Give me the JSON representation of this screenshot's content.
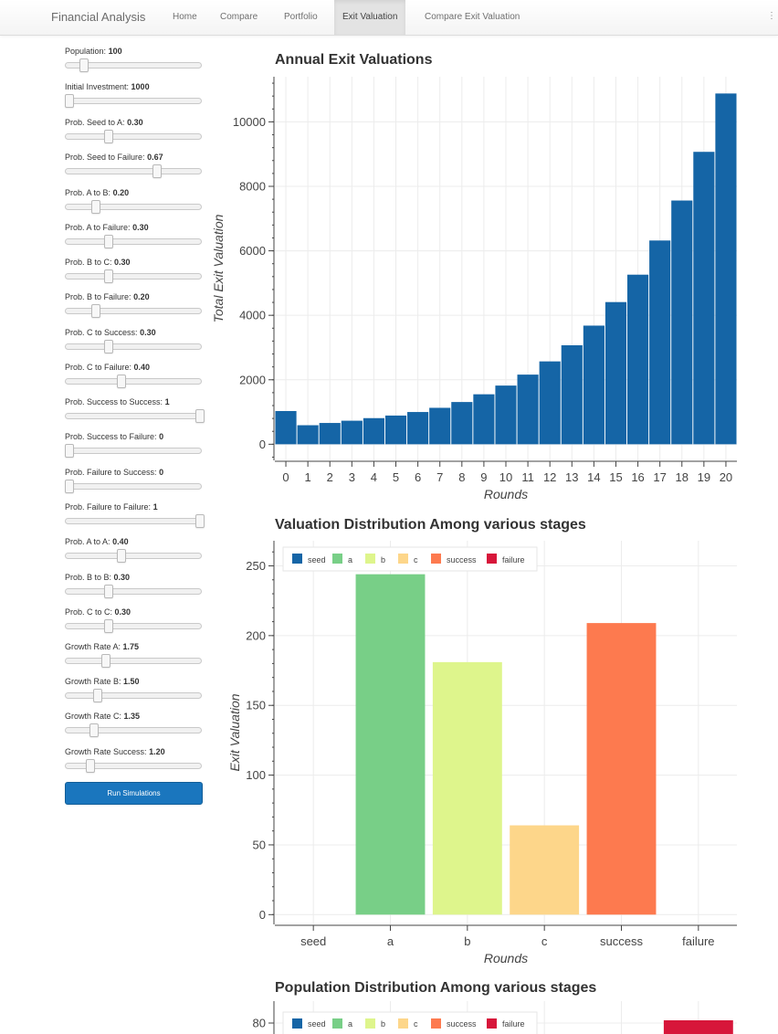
{
  "navbar": {
    "brand": "Financial Analysis",
    "items": [
      {
        "label": "Home",
        "active": false
      },
      {
        "label": "Compare",
        "active": false
      },
      {
        "label": "Portfolio",
        "active": false
      },
      {
        "label": "Exit Valuation",
        "active": true
      },
      {
        "label": "Compare Exit Valuation",
        "active": false
      }
    ]
  },
  "controls": [
    {
      "label": "Population:",
      "value": "100",
      "fraction": 0.11
    },
    {
      "label": "Initial Investment:",
      "value": "1000",
      "fraction": 0.0
    },
    {
      "label": "Prob. Seed to A:",
      "value": "0.30",
      "fraction": 0.3
    },
    {
      "label": "Prob. Seed to Failure:",
      "value": "0.67",
      "fraction": 0.67
    },
    {
      "label": "Prob. A to B:",
      "value": "0.20",
      "fraction": 0.2
    },
    {
      "label": "Prob. A to Failure:",
      "value": "0.30",
      "fraction": 0.3
    },
    {
      "label": "Prob. B to C:",
      "value": "0.30",
      "fraction": 0.3
    },
    {
      "label": "Prob. B to Failure:",
      "value": "0.20",
      "fraction": 0.2
    },
    {
      "label": "Prob. C to Success:",
      "value": "0.30",
      "fraction": 0.3
    },
    {
      "label": "Prob. C to Failure:",
      "value": "0.40",
      "fraction": 0.4
    },
    {
      "label": "Prob. Success to Success:",
      "value": "1",
      "fraction": 1.0
    },
    {
      "label": "Prob. Success to Failure:",
      "value": "0",
      "fraction": 0.0
    },
    {
      "label": "Prob. Failure to Success:",
      "value": "0",
      "fraction": 0.0
    },
    {
      "label": "Prob. Failure to Failure:",
      "value": "1",
      "fraction": 1.0
    },
    {
      "label": "Prob. A to A:",
      "value": "0.40",
      "fraction": 0.4
    },
    {
      "label": "Prob. B to B:",
      "value": "0.30",
      "fraction": 0.3
    },
    {
      "label": "Prob. C to C:",
      "value": "0.30",
      "fraction": 0.3
    },
    {
      "label": "Growth Rate A:",
      "value": "1.75",
      "fraction": 0.28
    },
    {
      "label": "Growth Rate B:",
      "value": "1.50",
      "fraction": 0.22
    },
    {
      "label": "Growth Rate C:",
      "value": "1.35",
      "fraction": 0.19
    },
    {
      "label": "Growth Rate Success:",
      "value": "1.20",
      "fraction": 0.16
    }
  ],
  "run_button": "Run Simulations",
  "colors": {
    "bar_blue": "#1565a6",
    "seed": "#1565a6",
    "a": "#78cf87",
    "b": "#def58c",
    "c": "#fdd68a",
    "success": "#fd7a4f",
    "failure": "#d7163a"
  },
  "chart_data": [
    {
      "type": "bar",
      "title": "Annual Exit Valuations",
      "xlabel": "Rounds",
      "ylabel": "Total Exit Valuation",
      "categories": [
        "0",
        "1",
        "2",
        "3",
        "4",
        "5",
        "6",
        "7",
        "8",
        "9",
        "10",
        "11",
        "12",
        "13",
        "14",
        "15",
        "16",
        "17",
        "18",
        "19",
        "20"
      ],
      "values": [
        1030,
        590,
        660,
        730,
        810,
        890,
        1000,
        1130,
        1310,
        1550,
        1820,
        2160,
        2570,
        3070,
        3680,
        4410,
        5260,
        6320,
        7560,
        9070,
        10880
      ],
      "yticks": [
        "0",
        "2000",
        "4000",
        "6000",
        "8000",
        "10000"
      ],
      "ylim": [
        -500,
        11400
      ],
      "grid": true
    },
    {
      "type": "bar",
      "title": "Valuation Distribution Among various stages",
      "xlabel": "Rounds",
      "ylabel": "Exit Valuation",
      "categories": [
        "seed",
        "a",
        "b",
        "c",
        "success",
        "failure"
      ],
      "values": [
        0,
        244,
        181,
        64,
        209,
        0
      ],
      "yticks": [
        "0",
        "50",
        "100",
        "150",
        "200",
        "250"
      ],
      "ylim": [
        -7,
        268
      ],
      "legend": [
        "seed",
        "a",
        "b",
        "c",
        "success",
        "failure"
      ],
      "legend_position": "top-left",
      "grid": true
    },
    {
      "type": "bar",
      "title": "Population Distribution Among various stages",
      "categories": [
        "seed",
        "a",
        "b",
        "c",
        "success",
        "failure"
      ],
      "values": [
        0,
        0,
        0,
        0,
        0,
        80
      ],
      "yticks": [
        "80"
      ],
      "legend": [
        "seed",
        "a",
        "b",
        "c",
        "success",
        "failure"
      ],
      "legend_position": "top-left",
      "grid": true
    }
  ]
}
